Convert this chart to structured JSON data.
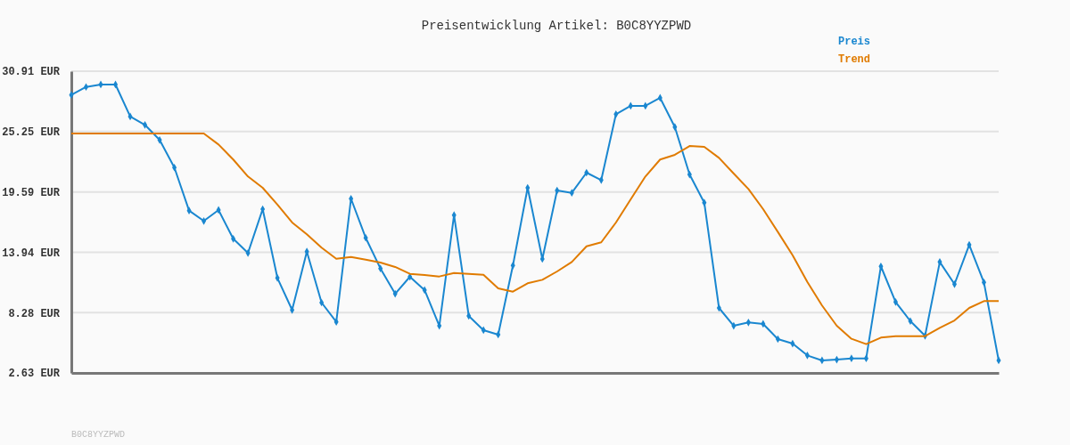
{
  "chart_data": {
    "type": "line",
    "title": "Preisentwicklung Artikel: B0C8YYZPWD",
    "categories": [
      null,
      null,
      null,
      null,
      null,
      null,
      null,
      null,
      null,
      null,
      null,
      null,
      null,
      null,
      null,
      null,
      null,
      null,
      null,
      null,
      null,
      null,
      null,
      null,
      null,
      null,
      null,
      null,
      null,
      null,
      null,
      null,
      null,
      null,
      null,
      null,
      null,
      null,
      null,
      null,
      null,
      null,
      null,
      null,
      null,
      null,
      null,
      null,
      null,
      null,
      null,
      null,
      null,
      null,
      null,
      null,
      null,
      null,
      null,
      null,
      null,
      null,
      null,
      null
    ],
    "series": [
      {
        "name": "Preis",
        "color": "#1a87d0",
        "marker": "diamond",
        "values": [
          28.68,
          29.43,
          29.66,
          29.66,
          26.66,
          25.88,
          24.46,
          21.88,
          17.84,
          16.87,
          17.9,
          15.2,
          13.87,
          17.98,
          11.53,
          8.53,
          14.0,
          9.22,
          7.41,
          18.96,
          15.29,
          12.42,
          10.05,
          11.64,
          10.39,
          7.05,
          17.42,
          7.97,
          6.64,
          6.22,
          12.7,
          19.98,
          13.31,
          19.73,
          19.51,
          21.4,
          20.71,
          26.88,
          27.66,
          27.66,
          28.41,
          25.68,
          21.23,
          18.59,
          8.72,
          7.05,
          7.36,
          7.22,
          5.8,
          5.38,
          4.27,
          3.8,
          3.88,
          3.99,
          3.99,
          12.62,
          9.28,
          7.49,
          6.11,
          13.03,
          10.95,
          14.64,
          11.11,
          3.8
        ]
      },
      {
        "name": "Trend",
        "color": "#e07b00",
        "marker": "none",
        "values": [
          25.07,
          25.07,
          25.07,
          25.07,
          25.07,
          25.07,
          25.07,
          25.07,
          25.07,
          25.07,
          24.04,
          22.63,
          21.04,
          19.98,
          18.4,
          16.73,
          15.62,
          14.37,
          13.33,
          13.5,
          13.25,
          12.98,
          12.56,
          11.92,
          11.81,
          11.67,
          12.0,
          11.92,
          11.83,
          10.56,
          10.25,
          11.03,
          11.36,
          12.14,
          13.03,
          14.5,
          14.87,
          16.73,
          18.9,
          21.04,
          22.63,
          23.07,
          23.9,
          23.82,
          22.79,
          21.32,
          19.87,
          17.98,
          15.84,
          13.67,
          11.16,
          8.95,
          7.05,
          5.83,
          5.33,
          5.94,
          6.08,
          6.08,
          6.08,
          6.86,
          7.55,
          8.72,
          9.36,
          9.36
        ]
      }
    ],
    "ylim": [
      2.63,
      30.91
    ],
    "yticks": [
      {
        "value": 2.63,
        "label": "2.63 EUR"
      },
      {
        "value": 8.28,
        "label": "8.28 EUR"
      },
      {
        "value": 13.94,
        "label": "13.94 EUR"
      },
      {
        "value": 19.59,
        "label": "19.59 EUR"
      },
      {
        "value": 25.25,
        "label": "25.25 EUR"
      },
      {
        "value": 30.91,
        "label": "30.91 EUR"
      }
    ],
    "grid": "y",
    "legend": "top right",
    "tick_labels": "y",
    "annotations": [
      "B0C8YYZPWD"
    ]
  }
}
